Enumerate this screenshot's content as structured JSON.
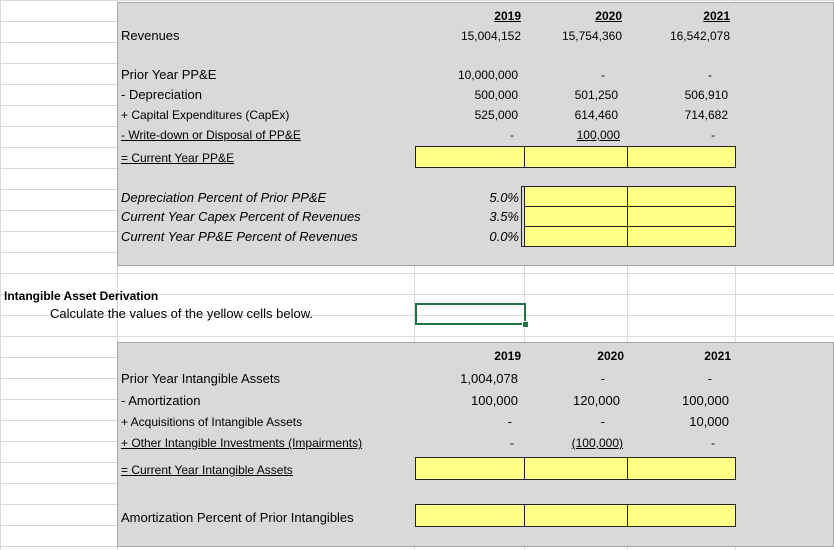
{
  "ppe": {
    "years": [
      "2019",
      "2020",
      "2021"
    ],
    "revenues_label": "Revenues",
    "revenues": [
      "15,004,152",
      "15,754,360",
      "16,542,078"
    ],
    "rows": [
      {
        "label": "Prior Year PP&E",
        "values": [
          "10,000,000",
          "-",
          "-"
        ]
      },
      {
        "label": "- Depreciation",
        "values": [
          "500,000",
          "501,250",
          "506,910"
        ]
      },
      {
        "label": "+ Capital Expenditures (CapEx)",
        "values": [
          "525,000",
          "614,460",
          "714,682"
        ]
      },
      {
        "label": "- Write-down or Disposal of PP&E",
        "values": [
          "-",
          "100,000",
          "-"
        ]
      }
    ],
    "total_label": "= Current Year PP&E",
    "pct_rows": [
      {
        "label": "Depreciation Percent of Prior PP&E",
        "value": "5.0%"
      },
      {
        "label": "Current Year Capex Percent of Revenues",
        "value": "3.5%"
      },
      {
        "label": "Current Year PP&E Percent of Revenues",
        "value": "0.0%"
      }
    ]
  },
  "intangible": {
    "heading": "Intangible Asset Derivation",
    "instruction": "Calculate the values of the yellow cells below.",
    "years": [
      "2019",
      "2020",
      "2021"
    ],
    "rows": [
      {
        "label": "Prior Year Intangible Assets",
        "values": [
          "1,004,078",
          "-",
          "-"
        ]
      },
      {
        "label": "- Amortization",
        "values": [
          "100,000",
          "120,000",
          "100,000"
        ]
      },
      {
        "label": "+ Acquisitions of Intangible Assets",
        "values": [
          "-",
          "-",
          "10,000"
        ]
      },
      {
        "label": "+ Other Intangible Investments (Impairments)",
        "values": [
          "-",
          "(100,000)",
          "-"
        ]
      }
    ],
    "total_label": "= Current Year Intangible Assets",
    "amort_label": "Amortization Percent of Prior Intangibles"
  },
  "colors": {
    "panel": "#d9d9d9",
    "input_cell": "#ffff88",
    "selection": "#217346"
  }
}
